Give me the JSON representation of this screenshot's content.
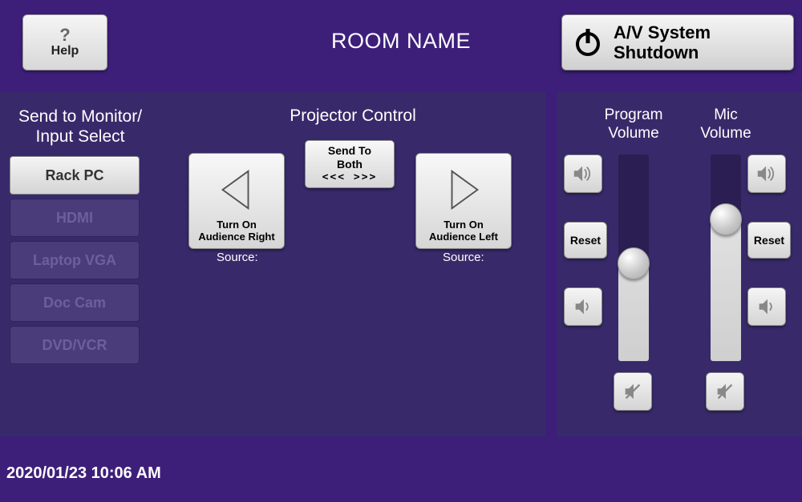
{
  "colors": {
    "page_bg": "#3d1f7a",
    "panel_bg": "#382a6a",
    "button_face_top": "#f5f5f5",
    "button_face_bottom": "#d4d4d4",
    "inactive_button_bg": "#4a3c7a",
    "inactive_button_text": "#6d5e9e",
    "slider_dark": "#2a1e52",
    "text": "#ffffff"
  },
  "header": {
    "help_label": "Help",
    "room_title": "ROOM NAME",
    "shutdown_line1": "A/V System",
    "shutdown_line2": "Shutdown"
  },
  "inputs": {
    "title_line1": "Send to Monitor/",
    "title_line2": "Input Select",
    "items": [
      {
        "label": "Rack PC",
        "selected": true
      },
      {
        "label": "HDMI",
        "selected": false
      },
      {
        "label": "Laptop VGA",
        "selected": false
      },
      {
        "label": "Doc Cam",
        "selected": false
      },
      {
        "label": "DVD/VCR",
        "selected": false
      }
    ]
  },
  "projector": {
    "title": "Projector Control",
    "send_both_line1": "Send To",
    "send_both_line2": "Both",
    "send_both_chev": "<<<   >>>",
    "right": {
      "line1": "Turn On",
      "line2": "Audience Right",
      "source_label": "Source:"
    },
    "left": {
      "line1": "Turn On",
      "line2": "Audience Left",
      "source_label": "Source:"
    }
  },
  "volumes": {
    "program": {
      "title_line1": "Program",
      "title_line2": "Volume",
      "reset_label": "Reset",
      "level_percent": 47
    },
    "mic": {
      "title_line1": "Mic",
      "title_line2": "Volume",
      "reset_label": "Reset",
      "level_percent": 72
    }
  },
  "footer": {
    "timestamp": "2020/01/23 10:06 AM"
  }
}
